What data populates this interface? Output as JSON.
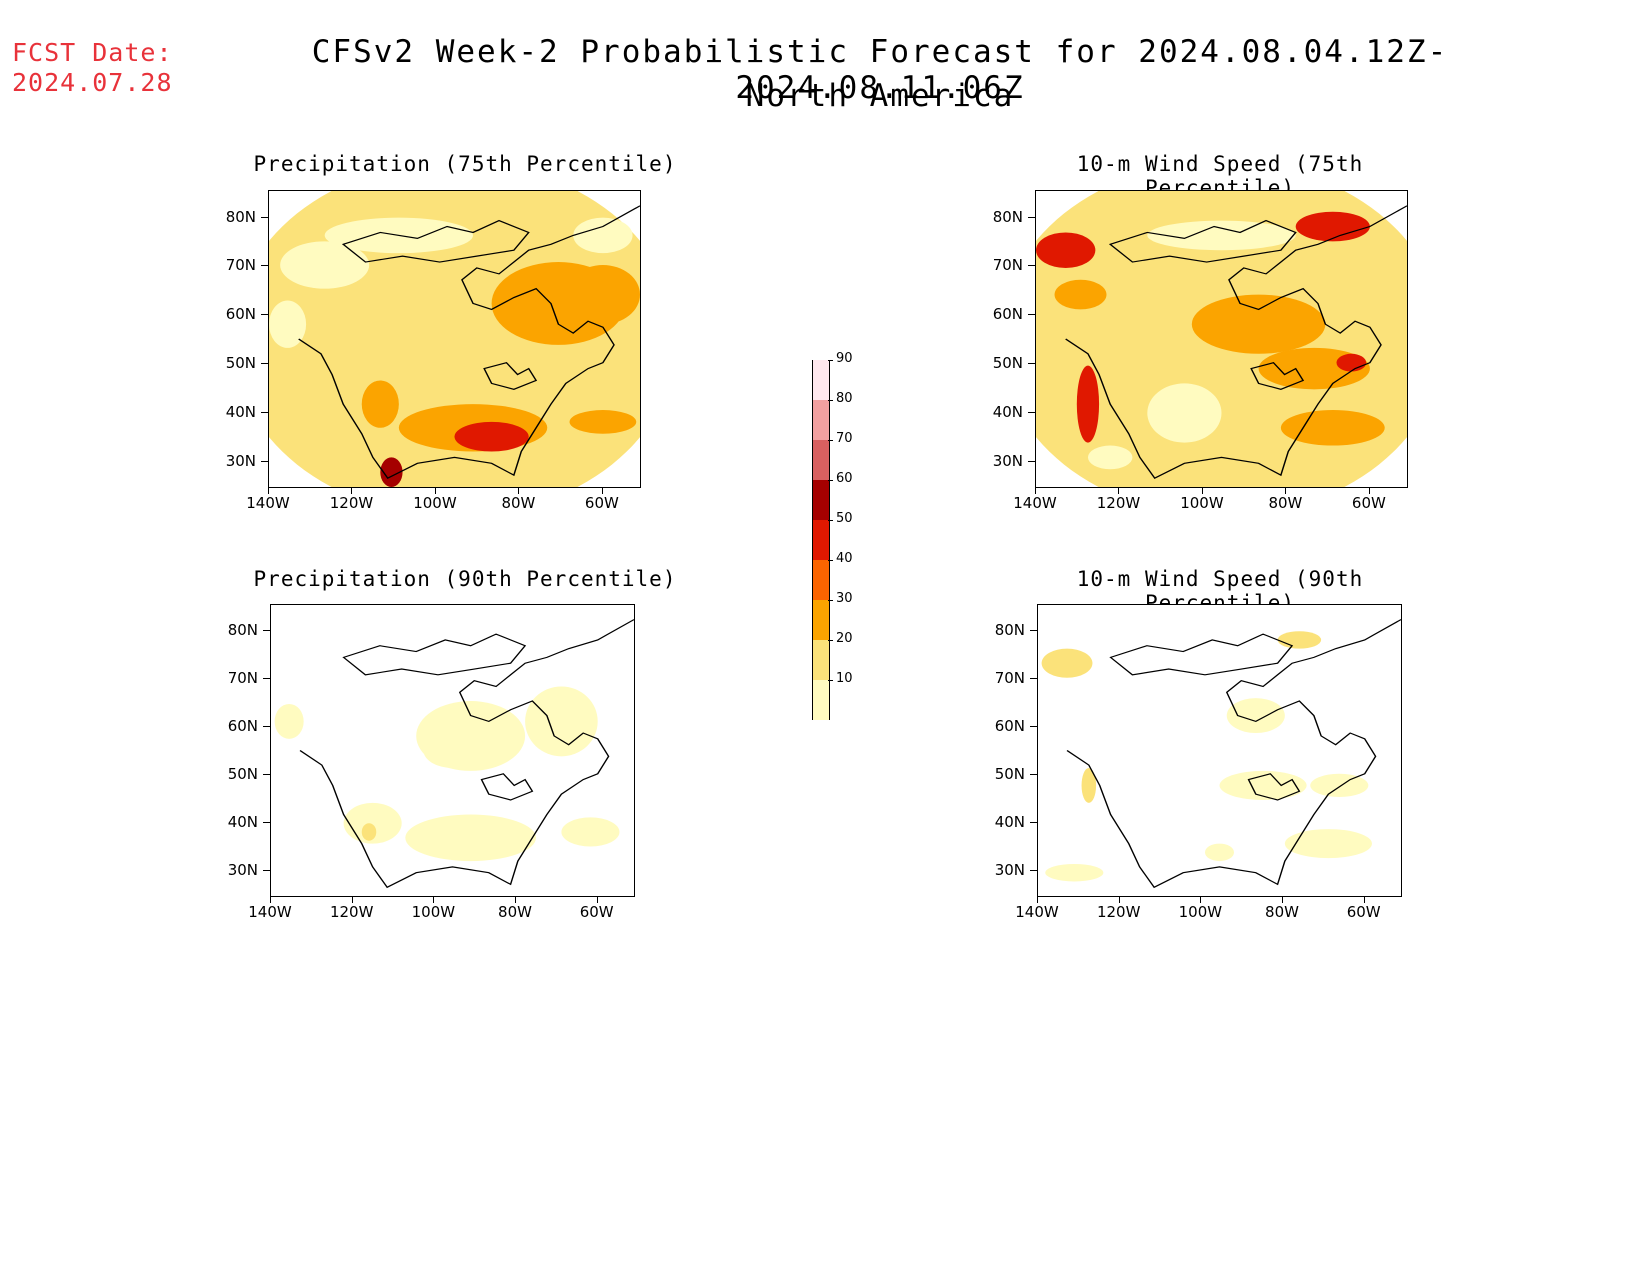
{
  "header": {
    "fcst_label": "FCST Date:",
    "fcst_date": "2024.07.28",
    "title": "CFSv2 Week-2 Probabilistic Forecast for 2024.08.04.12Z-2024.08.11.06Z",
    "subtitle": "North America"
  },
  "axes": {
    "lat_labels": [
      "80N",
      "70N",
      "60N",
      "50N",
      "40N",
      "30N"
    ],
    "lon_labels": [
      "140W",
      "120W",
      "100W",
      "80W",
      "60W"
    ]
  },
  "colorbar": {
    "labels": [
      "10",
      "20",
      "30",
      "40",
      "50",
      "60",
      "70",
      "80",
      "90"
    ],
    "colors": [
      "#fffbc0",
      "#fbe27a",
      "#fba400",
      "#fb6400",
      "#e01800",
      "#a50000",
      "#d86060",
      "#f2a0a0",
      "#ffe8ee"
    ]
  },
  "panels": [
    {
      "title": "Precipitation (75th Percentile)",
      "intensity": "high",
      "field": "precip"
    },
    {
      "title": "10-m Wind Speed (75th Percentile)",
      "intensity": "high",
      "field": "wind"
    },
    {
      "title": "Precipitation (90th Percentile)",
      "intensity": "low",
      "field": "precip"
    },
    {
      "title": "10-m Wind Speed (90th Percentile)",
      "intensity": "low",
      "field": "wind"
    }
  ]
}
